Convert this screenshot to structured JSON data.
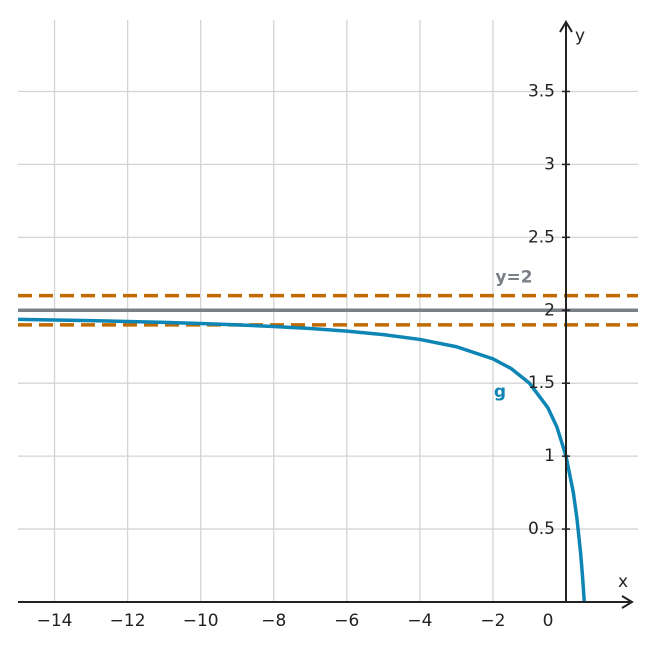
{
  "chart_data": {
    "type": "line",
    "xlabel": "x",
    "ylabel": "y",
    "xlim": [
      -15,
      1.97
    ],
    "ylim": [
      0,
      3.99
    ],
    "xticks": [
      {
        "value": -14,
        "label": "−14"
      },
      {
        "value": -12,
        "label": "−12"
      },
      {
        "value": -10,
        "label": "−10"
      },
      {
        "value": -8,
        "label": "−8"
      },
      {
        "value": -6,
        "label": "−6"
      },
      {
        "value": -4,
        "label": "−4"
      },
      {
        "value": -2,
        "label": "−2"
      },
      0
    ],
    "yticks": [
      0.5,
      1,
      1.5,
      2,
      2.5,
      3,
      3.5
    ],
    "grid": true,
    "x": [
      -15,
      -14,
      -13,
      -12,
      -11,
      -10,
      -9,
      -8,
      -7,
      -6,
      -5,
      -4,
      -3,
      -2,
      -1.5,
      -1,
      -0.5,
      -0.25,
      0,
      0.2,
      0.3,
      0.4,
      0.45,
      0.5
    ],
    "series": [
      {
        "name": "g",
        "color": "#0d86b5",
        "values": [
          1.9375,
          1.9333,
          1.9286,
          1.9231,
          1.9167,
          1.9091,
          1.9,
          1.8889,
          1.875,
          1.8571,
          1.8333,
          1.8,
          1.75,
          1.6667,
          1.6,
          1.5,
          1.3333,
          1.2,
          1,
          0.75,
          0.5714,
          0.3333,
          0.1818,
          0
        ]
      }
    ],
    "hlines": [
      {
        "y": 2.1,
        "color": "#c06a00",
        "dashed": true
      },
      {
        "y": 1.9,
        "color": "#c06a00",
        "dashed": true
      },
      {
        "y": 2,
        "color": "#7b8088",
        "dashed": false,
        "label": "y=2"
      }
    ]
  }
}
